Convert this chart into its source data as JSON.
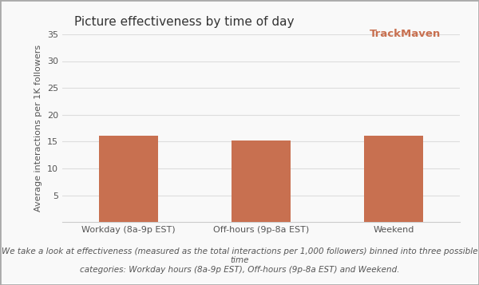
{
  "title": "Picture effectiveness by time of day",
  "categories": [
    "Workday (8a-9p EST)",
    "Off-hours (9p-8a EST)",
    "Weekend"
  ],
  "values": [
    16.1,
    15.2,
    16.1
  ],
  "bar_color": "#C87050",
  "ylabel": "Average interactions per 1K followers",
  "ylim": [
    0,
    35
  ],
  "yticks": [
    5,
    10,
    15,
    20,
    25,
    30,
    35
  ],
  "background_color": "#f9f9f9",
  "border_color": "#cccccc",
  "grid_color": "#dddddd",
  "title_fontsize": 11,
  "tick_fontsize": 8,
  "ylabel_fontsize": 8,
  "footnote": "We take a look at effectiveness (measured as the total interactions per 1,000 followers) binned into three possible time\ncategories: Workday hours (8a-9p EST), Off-hours (9p-8a EST) and Weekend.",
  "footnote_fontsize": 7.5,
  "trackmaven_color": "#C87050"
}
